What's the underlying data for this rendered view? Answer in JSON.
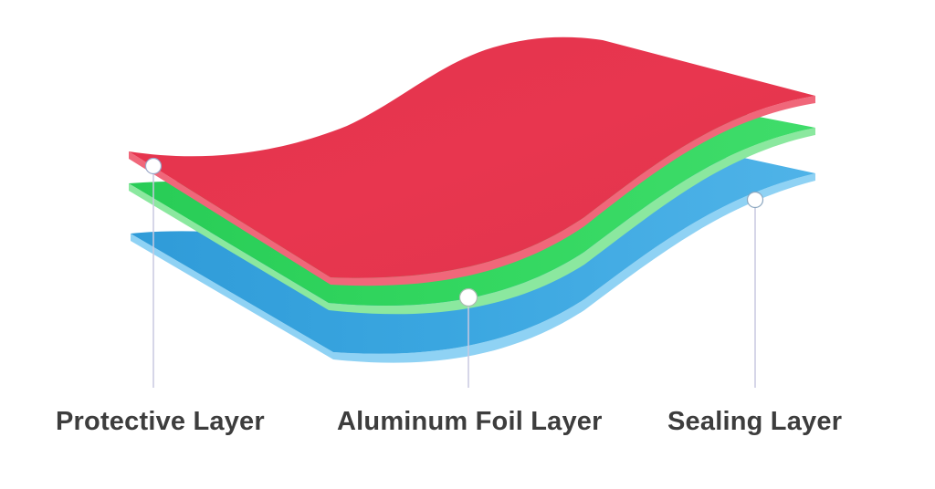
{
  "layers": [
    {
      "id": "protective",
      "label": "Protective Layer",
      "color": "#e8344f",
      "edge_color": "#f0677a"
    },
    {
      "id": "aluminum",
      "label": "Aluminum Foil Layer",
      "color": "#2fd45e",
      "edge_color": "#8be89f"
    },
    {
      "id": "sealing",
      "label": "Sealing Layer",
      "color": "#3aa6e0",
      "edge_color": "#8fd2f4"
    }
  ],
  "connector_color": "#c9c9e0",
  "marker_color": "#ffffff"
}
